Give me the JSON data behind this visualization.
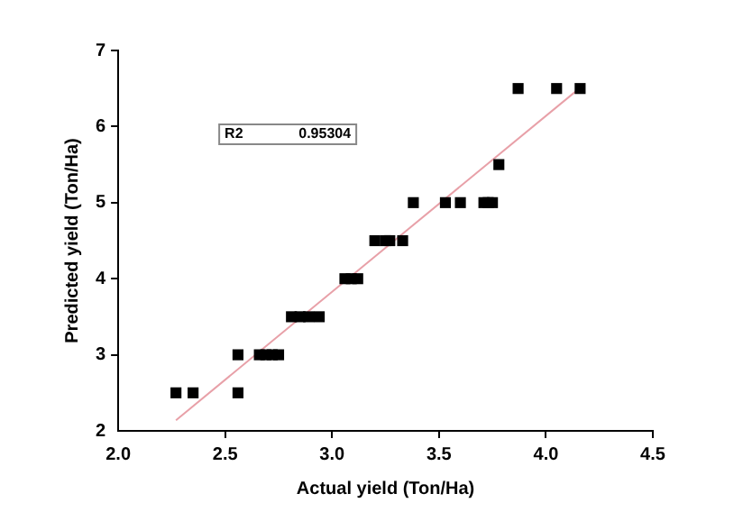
{
  "chart_data": {
    "type": "scatter",
    "xlabel": "Actual yield (Ton/Ha)",
    "ylabel": "Predicted yield (Ton/Ha)",
    "xlim": [
      2.0,
      4.5
    ],
    "xticks": [
      {
        "value": 2.0,
        "label": "2.0"
      },
      {
        "value": 2.5,
        "label": "2.5"
      },
      {
        "value": 3.0,
        "label": "3.0"
      },
      {
        "value": 3.5,
        "label": "3.5"
      },
      {
        "value": 4.0,
        "label": "4.0"
      },
      {
        "value": 4.5,
        "label": "4.5"
      }
    ],
    "ylim": [
      2,
      7
    ],
    "yticks": [
      2,
      3,
      4,
      5,
      6,
      7
    ],
    "grid": false,
    "legend": false,
    "annotations": [
      "R2",
      "0.95304"
    ],
    "series": [
      {
        "marker": "square",
        "color": "#000000",
        "x": [
          2.27,
          2.35,
          2.56,
          2.56,
          2.66,
          2.69,
          2.72,
          2.75,
          2.81,
          2.85,
          2.89,
          2.94,
          3.06,
          3.09,
          3.12,
          3.2,
          3.25,
          3.27,
          3.33,
          3.38,
          3.53,
          3.6,
          3.71,
          3.73,
          3.75,
          3.78,
          3.87,
          4.05,
          4.16
        ],
        "values": [
          2.5,
          2.5,
          2.5,
          3,
          3,
          3,
          3,
          3,
          3.5,
          3.5,
          3.5,
          3.5,
          4,
          4,
          4,
          4.5,
          4.5,
          4.5,
          4.5,
          5,
          5,
          5,
          5,
          5,
          5,
          5.5,
          6.5,
          6.5,
          6.5
        ]
      },
      {
        "type": "line",
        "marker": "none",
        "color": "#e8a0a8",
        "x": [
          2.27,
          4.16
        ],
        "values": [
          2.14,
          6.51
        ]
      }
    ]
  }
}
